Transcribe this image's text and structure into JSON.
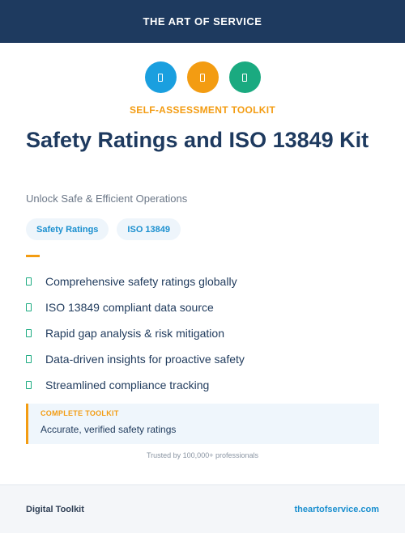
{
  "header": {
    "title": "THE ART OF SERVICE"
  },
  "icons": [
    {
      "name": "info-icon",
      "color": "#1a9fdf"
    },
    {
      "name": "star-icon",
      "color": "#f39c12"
    },
    {
      "name": "check-icon",
      "color": "#1aaa80"
    }
  ],
  "eyebrow": "SELF-ASSESSMENT TOOLKIT",
  "title": "Safety Ratings and ISO 13849 Kit",
  "subtitle": "Unlock Safe & Efficient Operations",
  "tags": [
    "Safety Ratings",
    "ISO 13849"
  ],
  "features": [
    "Comprehensive safety ratings globally",
    "ISO 13849 compliant data source",
    "Rapid gap analysis & risk mitigation",
    "Data-driven insights for proactive safety",
    "Streamlined compliance tracking"
  ],
  "callout": {
    "label": "COMPLETE TOOLKIT",
    "text": "Accurate, verified safety ratings"
  },
  "trusted": "Trusted by 100,000+ professionals",
  "footer": {
    "left": "Digital Toolkit",
    "right": "theartofservice.com"
  },
  "colors": {
    "navy": "#1e3a5f",
    "accent_orange": "#f39c12",
    "accent_blue": "#1a9fdf",
    "accent_green": "#1aaa80"
  }
}
